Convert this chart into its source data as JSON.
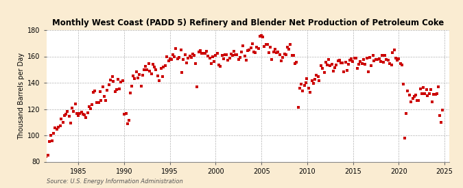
{
  "title": "Monthly West Coast (PADD 5) Refinery and Blender Net Production of Petroleum Coke",
  "ylabel": "Thousand Barrels per Day",
  "source": "Source: U.S. Energy Information Administration",
  "bg_color": "#faecd2",
  "plot_bg": "#ffffff",
  "marker_color": "#cc0000",
  "ylim": [
    80,
    180
  ],
  "yticks": [
    80,
    100,
    120,
    140,
    160,
    180
  ],
  "xlim_start": 1981.5,
  "xlim_end": 2025.5,
  "xticks": [
    1985,
    1990,
    1995,
    2000,
    2005,
    2010,
    2015,
    2020,
    2025
  ],
  "data": [
    [
      1981.5,
      80
    ],
    [
      1981.67,
      88
    ],
    [
      1981.83,
      95
    ],
    [
      1982.0,
      97
    ],
    [
      1982.17,
      94
    ],
    [
      1982.33,
      100
    ],
    [
      1982.5,
      104
    ],
    [
      1982.67,
      106
    ],
    [
      1982.83,
      108
    ],
    [
      1983.0,
      105
    ],
    [
      1983.17,
      110
    ],
    [
      1983.33,
      107
    ],
    [
      1983.5,
      112
    ],
    [
      1983.67,
      116
    ],
    [
      1983.83,
      118
    ],
    [
      1984.0,
      112
    ],
    [
      1984.17,
      108
    ],
    [
      1984.33,
      119
    ],
    [
      1984.5,
      116
    ],
    [
      1984.67,
      121
    ],
    [
      1984.83,
      118
    ],
    [
      1985.0,
      116
    ],
    [
      1985.17,
      120
    ],
    [
      1985.33,
      117
    ],
    [
      1985.5,
      120
    ],
    [
      1985.67,
      116
    ],
    [
      1985.83,
      113
    ],
    [
      1986.0,
      119
    ],
    [
      1986.17,
      121
    ],
    [
      1986.33,
      124
    ],
    [
      1986.5,
      127
    ],
    [
      1986.67,
      130
    ],
    [
      1986.83,
      135
    ],
    [
      1987.0,
      128
    ],
    [
      1987.17,
      125
    ],
    [
      1987.33,
      131
    ],
    [
      1987.5,
      129
    ],
    [
      1987.67,
      136
    ],
    [
      1987.83,
      133
    ],
    [
      1988.0,
      130
    ],
    [
      1988.17,
      134
    ],
    [
      1988.33,
      138
    ],
    [
      1988.5,
      141
    ],
    [
      1988.67,
      143
    ],
    [
      1988.83,
      137
    ],
    [
      1989.0,
      133
    ],
    [
      1989.17,
      136
    ],
    [
      1989.33,
      140
    ],
    [
      1989.5,
      137
    ],
    [
      1989.67,
      141
    ],
    [
      1989.83,
      145
    ],
    [
      1990.0,
      120
    ],
    [
      1990.17,
      113
    ],
    [
      1990.33,
      106
    ],
    [
      1990.5,
      110
    ],
    [
      1990.67,
      133
    ],
    [
      1990.83,
      140
    ],
    [
      1991.0,
      148
    ],
    [
      1991.17,
      145
    ],
    [
      1991.33,
      148
    ],
    [
      1991.5,
      142
    ],
    [
      1991.67,
      145
    ],
    [
      1991.83,
      139
    ],
    [
      1992.0,
      142
    ],
    [
      1992.17,
      148
    ],
    [
      1992.33,
      152
    ],
    [
      1992.5,
      149
    ],
    [
      1992.67,
      155
    ],
    [
      1992.83,
      151
    ],
    [
      1993.0,
      148
    ],
    [
      1993.17,
      152
    ],
    [
      1993.33,
      156
    ],
    [
      1993.5,
      153
    ],
    [
      1993.67,
      149
    ],
    [
      1993.83,
      145
    ],
    [
      1994.0,
      148
    ],
    [
      1994.17,
      143
    ],
    [
      1994.33,
      152
    ],
    [
      1994.5,
      156
    ],
    [
      1994.67,
      160
    ],
    [
      1994.83,
      157
    ],
    [
      1995.0,
      161
    ],
    [
      1995.17,
      158
    ],
    [
      1995.33,
      162
    ],
    [
      1995.5,
      159
    ],
    [
      1995.67,
      165
    ],
    [
      1995.83,
      162
    ],
    [
      1996.0,
      160
    ],
    [
      1996.17,
      164
    ],
    [
      1996.33,
      148
    ],
    [
      1996.5,
      155
    ],
    [
      1996.67,
      160
    ],
    [
      1996.83,
      158
    ],
    [
      1997.0,
      162
    ],
    [
      1997.17,
      159
    ],
    [
      1997.33,
      163
    ],
    [
      1997.5,
      161
    ],
    [
      1997.67,
      157
    ],
    [
      1997.83,
      154
    ],
    [
      1998.0,
      138
    ],
    [
      1998.17,
      162
    ],
    [
      1998.33,
      165
    ],
    [
      1998.5,
      162
    ],
    [
      1998.67,
      159
    ],
    [
      1998.83,
      163
    ],
    [
      1999.0,
      160
    ],
    [
      1999.17,
      157
    ],
    [
      1999.33,
      161
    ],
    [
      1999.5,
      158
    ],
    [
      1999.67,
      163
    ],
    [
      1999.83,
      160
    ],
    [
      2000.0,
      164
    ],
    [
      2000.17,
      161
    ],
    [
      2000.33,
      157
    ],
    [
      2000.5,
      154
    ],
    [
      2000.67,
      158
    ],
    [
      2000.83,
      162
    ],
    [
      2001.0,
      159
    ],
    [
      2001.17,
      163
    ],
    [
      2001.33,
      160
    ],
    [
      2001.5,
      157
    ],
    [
      2001.67,
      161
    ],
    [
      2001.83,
      158
    ],
    [
      2002.0,
      162
    ],
    [
      2002.17,
      159
    ],
    [
      2002.33,
      163
    ],
    [
      2002.5,
      160
    ],
    [
      2002.67,
      157
    ],
    [
      2002.83,
      161
    ],
    [
      2003.0,
      164
    ],
    [
      2003.17,
      161
    ],
    [
      2003.33,
      158
    ],
    [
      2003.5,
      162
    ],
    [
      2003.67,
      166
    ],
    [
      2003.83,
      163
    ],
    [
      2004.0,
      167
    ],
    [
      2004.17,
      164
    ],
    [
      2004.33,
      161
    ],
    [
      2004.5,
      165
    ],
    [
      2004.67,
      169
    ],
    [
      2004.83,
      172
    ],
    [
      2005.0,
      176
    ],
    [
      2005.17,
      172
    ],
    [
      2005.33,
      169
    ],
    [
      2005.5,
      166
    ],
    [
      2005.67,
      170
    ],
    [
      2005.83,
      167
    ],
    [
      2006.0,
      164
    ],
    [
      2006.17,
      161
    ],
    [
      2006.33,
      165
    ],
    [
      2006.5,
      162
    ],
    [
      2006.67,
      159
    ],
    [
      2006.83,
      163
    ],
    [
      2007.0,
      160
    ],
    [
      2007.17,
      157
    ],
    [
      2007.33,
      161
    ],
    [
      2007.5,
      163
    ],
    [
      2007.67,
      160
    ],
    [
      2007.83,
      165
    ],
    [
      2008.0,
      163
    ],
    [
      2008.17,
      167
    ],
    [
      2008.33,
      164
    ],
    [
      2008.5,
      161
    ],
    [
      2008.67,
      158
    ],
    [
      2008.83,
      155
    ],
    [
      2009.0,
      122
    ],
    [
      2009.17,
      133
    ],
    [
      2009.33,
      140
    ],
    [
      2009.5,
      137
    ],
    [
      2009.67,
      141
    ],
    [
      2009.83,
      138
    ],
    [
      2010.0,
      142
    ],
    [
      2010.17,
      139
    ],
    [
      2010.33,
      136
    ],
    [
      2010.5,
      140
    ],
    [
      2010.67,
      143
    ],
    [
      2010.83,
      140
    ],
    [
      2011.0,
      144
    ],
    [
      2011.17,
      148
    ],
    [
      2011.33,
      145
    ],
    [
      2011.5,
      149
    ],
    [
      2011.67,
      152
    ],
    [
      2011.83,
      149
    ],
    [
      2012.0,
      153
    ],
    [
      2012.17,
      150
    ],
    [
      2012.33,
      154
    ],
    [
      2012.5,
      151
    ],
    [
      2012.67,
      155
    ],
    [
      2012.83,
      152
    ],
    [
      2013.0,
      149
    ],
    [
      2013.17,
      153
    ],
    [
      2013.33,
      157
    ],
    [
      2013.5,
      154
    ],
    [
      2013.67,
      158
    ],
    [
      2013.83,
      155
    ],
    [
      2014.0,
      152
    ],
    [
      2014.17,
      156
    ],
    [
      2014.33,
      153
    ],
    [
      2014.5,
      157
    ],
    [
      2014.67,
      160
    ],
    [
      2014.83,
      157
    ],
    [
      2015.0,
      154
    ],
    [
      2015.17,
      158
    ],
    [
      2015.33,
      155
    ],
    [
      2015.5,
      152
    ],
    [
      2015.67,
      156
    ],
    [
      2015.83,
      153
    ],
    [
      2016.0,
      157
    ],
    [
      2016.17,
      154
    ],
    [
      2016.33,
      158
    ],
    [
      2016.5,
      155
    ],
    [
      2016.67,
      152
    ],
    [
      2016.83,
      156
    ],
    [
      2017.0,
      153
    ],
    [
      2017.17,
      157
    ],
    [
      2017.33,
      160
    ],
    [
      2017.5,
      157
    ],
    [
      2017.67,
      154
    ],
    [
      2017.83,
      158
    ],
    [
      2018.0,
      155
    ],
    [
      2018.17,
      159
    ],
    [
      2018.33,
      156
    ],
    [
      2018.5,
      160
    ],
    [
      2018.67,
      157
    ],
    [
      2018.83,
      154
    ],
    [
      2019.0,
      158
    ],
    [
      2019.17,
      155
    ],
    [
      2019.33,
      159
    ],
    [
      2019.5,
      162
    ],
    [
      2019.67,
      159
    ],
    [
      2019.83,
      156
    ],
    [
      2020.0,
      160
    ],
    [
      2020.17,
      157
    ],
    [
      2020.33,
      154
    ],
    [
      2020.5,
      140
    ],
    [
      2020.67,
      97
    ],
    [
      2020.83,
      120
    ],
    [
      2021.0,
      130
    ],
    [
      2021.17,
      127
    ],
    [
      2021.33,
      124
    ],
    [
      2021.5,
      128
    ],
    [
      2021.67,
      131
    ],
    [
      2021.83,
      128
    ],
    [
      2022.0,
      125
    ],
    [
      2022.17,
      129
    ],
    [
      2022.33,
      132
    ],
    [
      2022.5,
      129
    ],
    [
      2022.67,
      133
    ],
    [
      2022.83,
      130
    ],
    [
      2023.0,
      134
    ],
    [
      2023.17,
      131
    ],
    [
      2023.33,
      128
    ],
    [
      2023.5,
      132
    ],
    [
      2023.67,
      129
    ],
    [
      2023.83,
      135
    ],
    [
      2024.0,
      132
    ],
    [
      2024.17,
      129
    ],
    [
      2024.33,
      133
    ],
    [
      2024.5,
      118
    ],
    [
      2024.67,
      109
    ],
    [
      2024.75,
      120
    ]
  ]
}
